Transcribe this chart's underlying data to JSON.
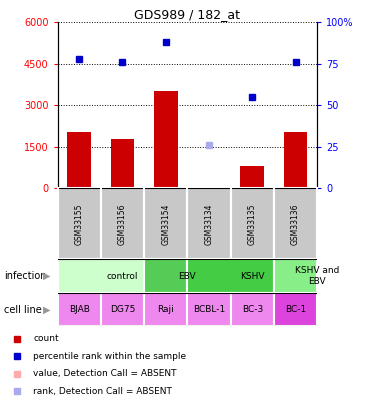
{
  "title": "GDS989 / 182_at",
  "samples": [
    "GSM33155",
    "GSM33156",
    "GSM33154",
    "GSM33134",
    "GSM33135",
    "GSM33136"
  ],
  "counts": [
    2050,
    1800,
    3500,
    50,
    800,
    2050
  ],
  "counts_absent": [
    false,
    false,
    false,
    true,
    false,
    false
  ],
  "percentile_ranks": [
    78,
    76,
    88,
    26,
    55,
    76
  ],
  "ranks_absent": [
    false,
    false,
    false,
    true,
    false,
    false
  ],
  "ylim_left": [
    0,
    6000
  ],
  "ylim_right": [
    0,
    100
  ],
  "yticks_left": [
    0,
    1500,
    3000,
    4500,
    6000
  ],
  "ytick_labels_left": [
    "0",
    "1500",
    "3000",
    "4500",
    "6000"
  ],
  "yticks_right": [
    0,
    25,
    50,
    75,
    100
  ],
  "ytick_labels_right": [
    "0",
    "25",
    "50",
    "75",
    "100%"
  ],
  "bar_color_present": "#cc0000",
  "bar_color_absent": "#ffaaaa",
  "dot_color_present": "#0000cc",
  "dot_color_absent": "#aaaaee",
  "infection_groups": [
    {
      "label": "control",
      "span": [
        0,
        2
      ],
      "color": "#ccffcc"
    },
    {
      "label": "EBV",
      "span": [
        2,
        3
      ],
      "color": "#55cc55"
    },
    {
      "label": "KSHV",
      "span": [
        3,
        5
      ],
      "color": "#44cc44"
    },
    {
      "label": "KSHV and\nEBV",
      "span": [
        5,
        6
      ],
      "color": "#88ee88"
    }
  ],
  "cell_lines": [
    "BJAB",
    "DG75",
    "Raji",
    "BCBL-1",
    "BC-3",
    "BC-1"
  ],
  "cell_line_colors": [
    "#ee88ee",
    "#ee88ee",
    "#ee88ee",
    "#ee88ee",
    "#ee88ee",
    "#dd44dd"
  ],
  "label_row1": "infection",
  "label_row2": "cell line",
  "legend_items": [
    {
      "label": "count",
      "color": "#cc0000"
    },
    {
      "label": "percentile rank within the sample",
      "color": "#0000cc"
    },
    {
      "label": "value, Detection Call = ABSENT",
      "color": "#ffaaaa"
    },
    {
      "label": "rank, Detection Call = ABSENT",
      "color": "#aaaaee"
    }
  ]
}
